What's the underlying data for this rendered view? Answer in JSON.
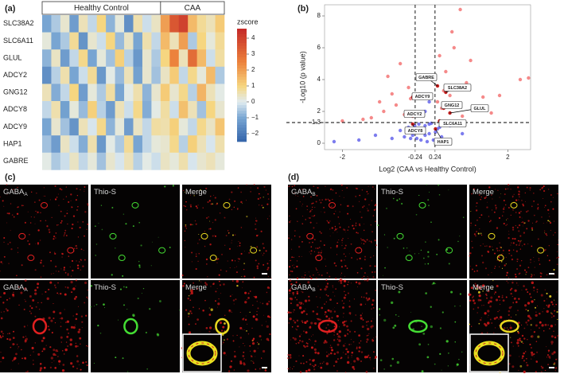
{
  "panel_labels": [
    "(a)",
    "(b)",
    "(c)",
    "(d)"
  ],
  "heatmap": {
    "type": "heatmap",
    "groups": [
      "Healthy Control",
      "CAA"
    ],
    "rows": [
      "SLC38A2",
      "SLC6A11",
      "GLUL",
      "ADCY2",
      "GNG12",
      "ADCY8",
      "ADCY9",
      "HAP1",
      "GABRE"
    ],
    "values_by_group": [
      [
        [
          -1,
          -0.5,
          0.3,
          -1.2,
          0.5,
          -0.3,
          1,
          -0.8,
          0.2,
          -1.5,
          0.6,
          -0.2,
          0.4
        ],
        [
          0.2,
          -1,
          -0.5,
          0.8,
          -1.4,
          0.3,
          -0.2,
          1,
          -0.7,
          0.4,
          -1,
          0.6,
          -0.3
        ],
        [
          -0.8,
          0.4,
          -1.2,
          -0.3,
          0.9,
          -1,
          0.2,
          -0.6,
          1.1,
          -0.4,
          -1.3,
          0.3,
          -0.5
        ],
        [
          -1.5,
          -0.4,
          0.6,
          -1,
          -0.2,
          0.8,
          -1.3,
          0.1,
          -0.7,
          0.5,
          -1.1,
          0.3,
          -0.6
        ],
        [
          0.5,
          -0.9,
          -0.3,
          1,
          -1.2,
          0.2,
          -0.5,
          0.7,
          -1,
          0.1,
          0.6,
          -0.8,
          0.3
        ],
        [
          -0.3,
          0.6,
          -1.1,
          0.2,
          -0.7,
          1.1,
          -0.4,
          -1.2,
          0.5,
          -0.2,
          0.9,
          -0.9,
          0.1
        ],
        [
          -1,
          0.3,
          -0.6,
          -1.4,
          0.5,
          -0.1,
          0.9,
          -0.8,
          0.2,
          -1.2,
          0.4,
          -0.3,
          0.7
        ],
        [
          -0.6,
          -1.2,
          0.4,
          -0.2,
          -0.9,
          0.6,
          -1.3,
          0.1,
          -0.5,
          0.8,
          -1,
          -0.3,
          0.2
        ],
        [
          0.1,
          -0.5,
          -0.2,
          0.4,
          -0.3,
          0.2,
          -0.6,
          0.3,
          -0.1,
          0.5,
          -0.4,
          0.1,
          -0.2
        ]
      ],
      [
        [
          2,
          3.5,
          4,
          1.5,
          0.8,
          0.5,
          1.2
        ],
        [
          1.5,
          0.5,
          2,
          -0.5,
          1,
          0.2,
          0.8
        ],
        [
          1,
          2.5,
          0.5,
          3,
          1.5,
          -0.2,
          0.7
        ],
        [
          0.4,
          1.2,
          -0.3,
          0.9,
          0.2,
          1.5,
          -0.5
        ],
        [
          1.2,
          0.3,
          0.9,
          -0.4,
          1.6,
          0.5,
          0.1
        ],
        [
          0.7,
          -0.2,
          1.4,
          0.5,
          -0.6,
          1,
          0.3
        ],
        [
          0.6,
          1.1,
          0.2,
          -0.3,
          0.9,
          0.4,
          1.3
        ],
        [
          0.3,
          0.9,
          -0.4,
          1.1,
          0.5,
          -0.1,
          0.6
        ],
        [
          0.4,
          0.2,
          0.6,
          -0.1,
          0.3,
          0.5,
          0.2
        ]
      ]
    ],
    "colorbar": {
      "title": "zscore",
      "lim": [
        -2.5,
        4.6
      ],
      "ticks": [
        4,
        3,
        2,
        1,
        0,
        {
          "value": -1,
          "label": "−1"
        },
        {
          "value": -2,
          "label": "−2"
        }
      ]
    }
  },
  "volcano": {
    "type": "scatter",
    "xlabel": "Log2 (CAA vs Healthy Control)",
    "ylabel": "-Log10 (p value)",
    "xlim": [
      -2.43,
      2.55
    ],
    "ylim": [
      -0.4,
      8.7
    ],
    "xticks": [
      -2,
      -0.24,
      0.24,
      2
    ],
    "yticks": [
      0,
      1.3,
      2,
      4,
      6,
      8
    ],
    "thresholds": {
      "x": [
        -0.24,
        0.24
      ],
      "y": 1.3
    },
    "colors": {
      "significant": "#f26b6b",
      "not_significant": "#5b5bea"
    },
    "x": [
      -0.2,
      -0.1,
      0,
      0.1,
      0.2,
      -0.3,
      0.3,
      -0.4,
      0.4,
      -0.15,
      0.15,
      0.05,
      -0.05,
      -0.6,
      0.6,
      -0.8,
      0.9,
      -1.2,
      -1.6,
      -2.2,
      0,
      0.1,
      -0.1,
      0.25,
      -0.25,
      -0.5,
      0.5,
      0.35,
      -0.35,
      0.7,
      0,
      0.1,
      -0.1,
      0.05,
      -0.5,
      -0.7,
      -1,
      -0.4,
      -0.9,
      -1.3,
      -0.6,
      -0.35,
      -0.8,
      -1.5,
      0.4,
      0.6,
      0.8,
      1,
      1.2,
      0.5,
      0.7,
      0.9,
      1.4,
      1.6,
      0.35,
      0.45,
      0.3,
      -0.3,
      1.1,
      2.3,
      2.5,
      1.8,
      0.85,
      -2,
      -1.1,
      0.65
    ],
    "y": [
      0.3,
      0.8,
      1.1,
      0.6,
      0.2,
      0.5,
      0.9,
      1.0,
      0.4,
      1.2,
      1.25,
      0.1,
      0.7,
      0.8,
      1.1,
      0.3,
      0.6,
      0.5,
      0.2,
      0.1,
      0.5,
      1.2,
      0.2,
      0.7,
      1.1,
      0.4,
      0.2,
      1.0,
      0.3,
      1.2,
      2,
      2.6,
      1.8,
      3.0,
      1.8,
      2.4,
      2.0,
      3.5,
      4.2,
      1.6,
      5.0,
      2.8,
      3.1,
      1.5,
      2.2,
      3.0,
      2.5,
      3.8,
      2.1,
      4.5,
      6.0,
      1.7,
      2.9,
      1.9,
      5.5,
      3.3,
      2.6,
      1.9,
      5.2,
      4.0,
      4.1,
      3.0,
      8.4,
      1.4,
      2.6,
      7.0
    ],
    "genes": [
      {
        "name": "GABRE",
        "x": 0.3,
        "y": 3.6
      },
      {
        "name": "SLC38A2",
        "x": 0.5,
        "y": 3.2
      },
      {
        "name": "ADCY9",
        "x": -0.3,
        "y": 2.9
      },
      {
        "name": "GNG12",
        "x": 0.45,
        "y": 2.2
      },
      {
        "name": "GLUL",
        "x": 0.6,
        "y": 1.9
      },
      {
        "name": "ADCY2",
        "x": -0.3,
        "y": 1.7
      },
      {
        "name": "SLC6A11",
        "x": 0.35,
        "y": 1.4
      },
      {
        "name": "ADCY8",
        "x": -0.3,
        "y": 1.2
      },
      {
        "name": "HAP1",
        "x": 0.25,
        "y": 0.9
      }
    ]
  },
  "panel_c": {
    "titles": [
      {
        "text": "GABA",
        "sub": "A"
      },
      {
        "text": "Thio-S"
      },
      {
        "text": "Merge"
      }
    ]
  },
  "panel_d": {
    "titles": [
      {
        "text": "GABA",
        "sub": "B"
      },
      {
        "text": "Thio-S"
      },
      {
        "text": "Merge"
      }
    ]
  }
}
